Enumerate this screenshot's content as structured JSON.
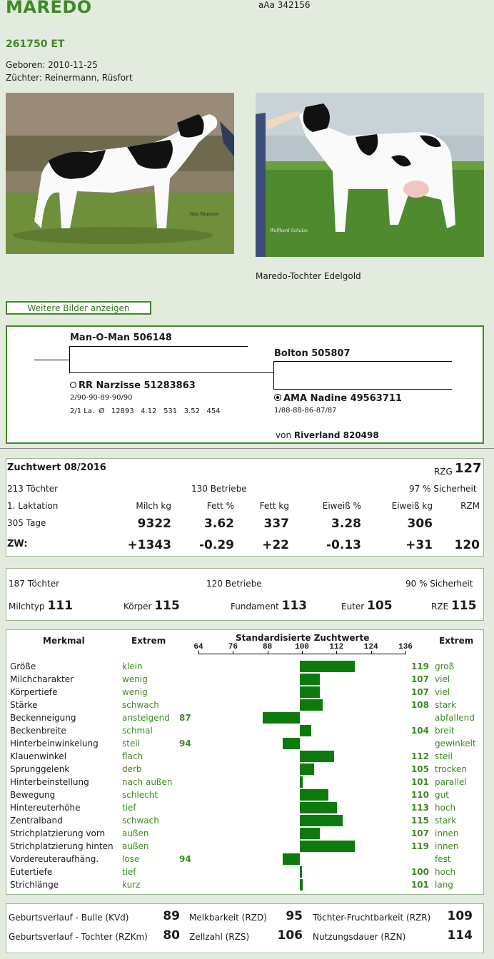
{
  "header": {
    "name": "MAREDO",
    "aaa": "aAa 342156",
    "id": "261750 ET",
    "born": "Geboren: 2010-11-25",
    "breeder": "Züchter: Reinermann, Rüsfort"
  },
  "photos": {
    "left_credit": "Han Hopman",
    "right_credit": "Wolfhard Schulze",
    "right_caption": "Maredo-Tochter Edelgold"
  },
  "more_button": "Weitere Bilder anzeigen",
  "pedigree": {
    "sire": "Man-O-Man 506148",
    "dam": "RR Narzisse 51283863",
    "dam_line1": "2/90-90-89-90/90",
    "dam_line2": "2/1 La.  Ø   12893   4.12   531   3.52   454",
    "mgs": "Bolton 505807",
    "mgd": "AMA Nadine 49563711",
    "mgd_line1": "1/88-88-86-87/87",
    "mgd_sire_prefix": "von ",
    "mgd_sire": "Riverland 820498"
  },
  "zuchtwert": {
    "title": "Zuchtwert 08/2016",
    "rzg_label": "RZG",
    "rzg": "127",
    "toechter": "213 Töchter",
    "betriebe": "130 Betriebe",
    "sicherheit": "97 % Sicherheit",
    "laktation": "1. Laktation",
    "headers": [
      "Milch kg",
      "Fett %",
      "Fett kg",
      "Eiweiß %",
      "Eiweiß kg",
      "RZM"
    ],
    "row1_label": "305 Tage",
    "row1": [
      "9322",
      "3.62",
      "337",
      "3.28",
      "306",
      ""
    ],
    "row2_label": "ZW:",
    "row2": [
      "+1343",
      "-0.29",
      "+22",
      "-0.13",
      "+31",
      "120"
    ]
  },
  "exterieur": {
    "toechter": "187 Töchter",
    "betriebe": "120 Betriebe",
    "sicherheit": "90 % Sicherheit",
    "items": [
      {
        "label": "Milchtyp",
        "value": "111"
      },
      {
        "label": "Körper",
        "value": "115"
      },
      {
        "label": "Fundament",
        "value": "113"
      },
      {
        "label": "Euter",
        "value": "105"
      },
      {
        "label": "RZE",
        "value": "115"
      }
    ]
  },
  "linear": {
    "col_merkmal": "Merkmal",
    "col_extrem_left": "Extrem",
    "col_std": "Standardisierte Zuchtwerte",
    "col_extrem_right": "Extrem",
    "ticks": [
      "64",
      "76",
      "88",
      "100",
      "112",
      "124",
      "136"
    ],
    "traits": [
      {
        "name": "Größe",
        "low": "klein",
        "high": "groß",
        "value": 119
      },
      {
        "name": "Milchcharakter",
        "low": "wenig",
        "high": "viel",
        "value": 107
      },
      {
        "name": "Körpertiefe",
        "low": "wenig",
        "high": "viel",
        "value": 107
      },
      {
        "name": "Stärke",
        "low": "schwach",
        "high": "stark",
        "value": 108
      },
      {
        "name": "Beckenneigung",
        "low": "ansteigend",
        "high": "abfallend",
        "value": 87
      },
      {
        "name": "Beckenbreite",
        "low": "schmal",
        "high": "breit",
        "value": 104
      },
      {
        "name": "Hinterbeinwinkelung",
        "low": "steil",
        "high": "gewinkelt",
        "value": 94
      },
      {
        "name": "Klauenwinkel",
        "low": "flach",
        "high": "steil",
        "value": 112
      },
      {
        "name": "Sprunggelenk",
        "low": "derb",
        "high": "trocken",
        "value": 105
      },
      {
        "name": "Hinterbeinstellung",
        "low": "nach außen",
        "high": "parallel",
        "value": 101
      },
      {
        "name": "Bewegung",
        "low": "schlecht",
        "high": "gut",
        "value": 110
      },
      {
        "name": "Hintereuterhöhe",
        "low": "tief",
        "high": "hoch",
        "value": 113
      },
      {
        "name": "Zentralband",
        "low": "schwach",
        "high": "stark",
        "value": 115
      },
      {
        "name": "Strichplatzierung vorn",
        "low": "außen",
        "high": "innen",
        "value": 107
      },
      {
        "name": "Strichplatzierung hinten",
        "low": "außen",
        "high": "innen",
        "value": 119
      },
      {
        "name": "Vordereuteraufhäng.",
        "low": "lose",
        "high": "fest",
        "value": 94
      },
      {
        "name": "Eutertiefe",
        "low": "tief",
        "high": "hoch",
        "value": 100
      },
      {
        "name": "Strichlänge",
        "low": "kurz",
        "high": "lang",
        "value": 101
      }
    ]
  },
  "funktional": [
    {
      "label": "Geburtsverlauf - Bulle (KVd)",
      "value": "89"
    },
    {
      "label": "Melkbarkeit (RZD)",
      "value": "95"
    },
    {
      "label": "Töchter-Fruchtbarkeit (RZR)",
      "value": "109"
    },
    {
      "label": "Geburtsverlauf - Tochter (RZKm)",
      "value": "80"
    },
    {
      "label": "Zellzahl (RZS)",
      "value": "106"
    },
    {
      "label": "Nutzungsdauer (RZN)",
      "value": "114"
    }
  ],
  "colors": {
    "accent": "#3e8a26",
    "bar": "#0d7a0d"
  }
}
